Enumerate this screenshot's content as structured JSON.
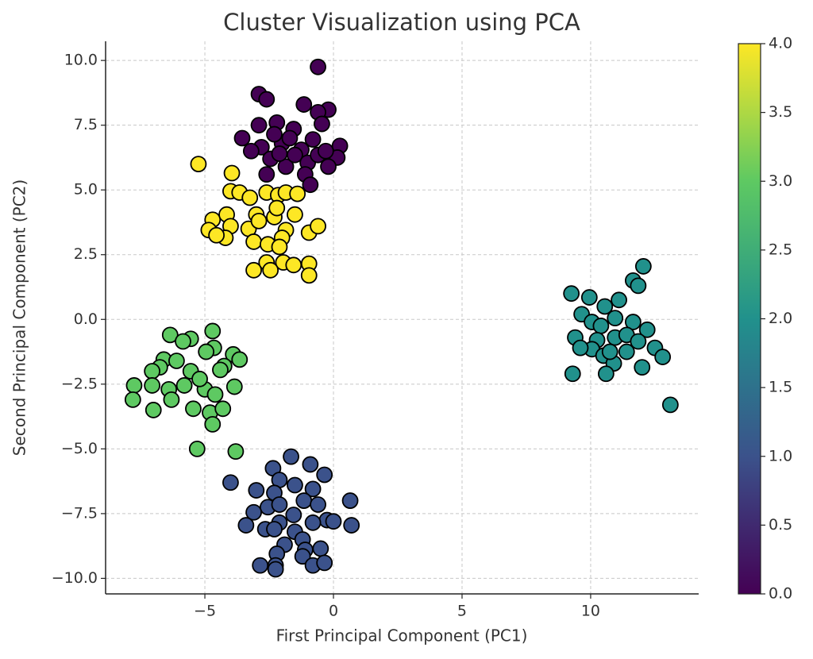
{
  "chart_data": {
    "type": "scatter",
    "title": "Cluster Visualization using PCA",
    "xlabel": "First Principal Component (PC1)",
    "ylabel": "Second Principal Component (PC2)",
    "xlim": [
      -8.86,
      14.2
    ],
    "ylim": [
      -10.6,
      10.74
    ],
    "xticks": [
      {
        "value": -5,
        "label": "−5"
      },
      0,
      5,
      10
    ],
    "yticks": [
      {
        "value": -10,
        "label": "−10.0"
      },
      {
        "value": -7.5,
        "label": "−7.5"
      },
      {
        "value": -5,
        "label": "−5.0"
      },
      {
        "value": -2.5,
        "label": "−2.5"
      },
      {
        "value": 0,
        "label": "0.0"
      },
      2.5,
      {
        "value": 5,
        "label": "5.0"
      },
      7.5,
      {
        "value": 10,
        "label": "10.0"
      }
    ],
    "grid": true,
    "edgecolor": "#000000",
    "colormap": "viridis",
    "colorbar": {
      "lim": [
        0,
        4
      ],
      "ticks": [
        {
          "value": 0,
          "label": "0.0"
        },
        {
          "value": 0.5,
          "label": "0.5"
        },
        {
          "value": 1,
          "label": "1.0"
        },
        {
          "value": 1.5,
          "label": "1.5"
        },
        {
          "value": 2,
          "label": "2.0"
        },
        {
          "value": 2.5,
          "label": "2.5"
        },
        {
          "value": 3,
          "label": "3.0"
        },
        {
          "value": 3.5,
          "label": "3.5"
        },
        {
          "value": 4,
          "label": "4.0"
        }
      ]
    },
    "x": [
      -0.6,
      -2.9,
      -2.6,
      -1.15,
      -0.2,
      -0.6,
      -2.9,
      -2.2,
      -1.55,
      -0.45,
      -3.55,
      -2.8,
      -2.0,
      -1.25,
      -0.8,
      0.25,
      -2.45,
      -1.85,
      -1.5,
      -1.0,
      -0.6,
      0.15,
      -2.6,
      -1.1,
      -0.9,
      -0.3,
      -2.3,
      -1.7,
      -2.1,
      -0.2,
      -3.2,
      -5.25,
      -3.95,
      -4.0,
      -3.65,
      -3.25,
      -2.6,
      -2.15,
      -1.85,
      -1.4,
      -4.7,
      -4.15,
      -4.0,
      -4.85,
      -4.2,
      -4.55,
      -3.3,
      -3.0,
      -2.9,
      -2.3,
      -2.2,
      -1.5,
      -1.85,
      -2.0,
      -0.95,
      -0.6,
      -3.1,
      -2.55,
      -2.1,
      -2.6,
      -1.95,
      -1.55,
      -0.95,
      -0.95,
      -3.1,
      -2.45,
      -6.35,
      -4.7,
      -5.55,
      -5.85,
      -4.65,
      -4.95,
      -6.6,
      -6.1,
      -3.9,
      -3.65,
      -4.25,
      -6.75,
      -7.05,
      -5.55,
      -4.4,
      -7.75,
      -7.05,
      -6.4,
      -5.8,
      -5.0,
      -3.85,
      -7.8,
      -7.0,
      -6.3,
      -5.45,
      -4.8,
      -4.3,
      -4.7,
      -5.3,
      -3.8,
      -5.2,
      -4.6,
      -1.65,
      -0.9,
      -2.35,
      -0.35,
      -4.0,
      -2.1,
      -1.5,
      -0.8,
      -3.0,
      -2.3,
      -1.15,
      0.65,
      -0.6,
      -2.55,
      -2.1,
      -3.1,
      -1.55,
      -0.25,
      0.0,
      -3.4,
      -2.1,
      -0.8,
      0.7,
      -2.65,
      -2.3,
      -1.5,
      -1.2,
      -1.9,
      -1.1,
      -0.5,
      -2.2,
      -1.2,
      -2.85,
      -2.25,
      -2.25,
      -0.8,
      -0.35,
      12.05,
      11.65,
      11.85,
      9.25,
      9.95,
      11.1,
      10.55,
      9.65,
      10.05,
      10.4,
      10.95,
      11.65,
      12.2,
      9.4,
      10.25,
      10.95,
      11.4,
      11.85,
      10.05,
      10.5,
      11.4,
      12.5,
      12.8,
      10.9,
      12.0,
      10.6,
      9.3,
      13.1,
      9.6,
      10.75
    ],
    "y": [
      9.75,
      8.7,
      8.5,
      8.3,
      8.1,
      8.0,
      7.5,
      7.6,
      7.35,
      7.55,
      7.0,
      6.65,
      6.8,
      6.55,
      6.95,
      6.7,
      6.2,
      5.9,
      6.35,
      6.05,
      6.35,
      6.25,
      5.6,
      5.6,
      5.2,
      6.5,
      7.15,
      7.0,
      6.4,
      5.9,
      6.5,
      6.0,
      5.65,
      4.95,
      4.9,
      4.7,
      4.9,
      4.8,
      4.9,
      4.85,
      3.85,
      4.05,
      3.6,
      3.45,
      3.15,
      3.25,
      3.5,
      4.05,
      3.8,
      3.95,
      4.3,
      4.05,
      3.45,
      3.15,
      3.35,
      3.6,
      3.0,
      2.9,
      2.8,
      2.2,
      2.2,
      2.1,
      2.15,
      1.7,
      1.9,
      1.9,
      -0.6,
      -0.45,
      -0.75,
      -0.85,
      -1.1,
      -1.25,
      -1.55,
      -1.6,
      -1.35,
      -1.55,
      -1.8,
      -1.85,
      -2.0,
      -2.0,
      -1.95,
      -2.55,
      -2.55,
      -2.7,
      -2.55,
      -2.7,
      -2.6,
      -3.1,
      -3.5,
      -3.1,
      -3.45,
      -3.6,
      -3.45,
      -4.05,
      -5.0,
      -5.1,
      -2.3,
      -2.9,
      -5.3,
      -5.6,
      -5.75,
      -6.0,
      -6.3,
      -6.2,
      -6.4,
      -6.55,
      -6.6,
      -6.7,
      -7.0,
      -7.0,
      -7.15,
      -7.25,
      -7.15,
      -7.45,
      -7.55,
      -7.75,
      -7.8,
      -7.95,
      -7.85,
      -7.85,
      -7.95,
      -8.1,
      -8.1,
      -8.2,
      -8.5,
      -8.7,
      -8.9,
      -8.85,
      -9.05,
      -9.15,
      -9.5,
      -9.5,
      -9.65,
      -9.5,
      -9.4,
      2.05,
      1.5,
      1.3,
      1.0,
      0.85,
      0.75,
      0.5,
      0.2,
      -0.1,
      -0.25,
      0.05,
      -0.1,
      -0.4,
      -0.7,
      -0.8,
      -0.7,
      -0.6,
      -0.85,
      -1.15,
      -1.4,
      -1.25,
      -1.1,
      -1.45,
      -1.7,
      -1.85,
      -2.1,
      -2.1,
      -3.3,
      -1.1,
      -1.25
    ],
    "c": [
      0,
      0,
      0,
      0,
      0,
      0,
      0,
      0,
      0,
      0,
      0,
      0,
      0,
      0,
      0,
      0,
      0,
      0,
      0,
      0,
      0,
      0,
      0,
      0,
      0,
      0,
      0,
      0,
      0,
      0,
      0,
      4,
      4,
      4,
      4,
      4,
      4,
      4,
      4,
      4,
      4,
      4,
      4,
      4,
      4,
      4,
      4,
      4,
      4,
      4,
      4,
      4,
      4,
      4,
      4,
      4,
      4,
      4,
      4,
      4,
      4,
      4,
      4,
      4,
      4,
      4,
      3,
      3,
      3,
      3,
      3,
      3,
      3,
      3,
      3,
      3,
      3,
      3,
      3,
      3,
      3,
      3,
      3,
      3,
      3,
      3,
      3,
      3,
      3,
      3,
      3,
      3,
      3,
      3,
      3,
      3,
      3,
      3,
      1,
      1,
      1,
      1,
      1,
      1,
      1,
      1,
      1,
      1,
      1,
      1,
      1,
      1,
      1,
      1,
      1,
      1,
      1,
      1,
      1,
      1,
      1,
      1,
      1,
      1,
      1,
      1,
      1,
      1,
      1,
      1,
      1,
      1,
      1,
      1,
      1,
      2,
      2,
      2,
      2,
      2,
      2,
      2,
      2,
      2,
      2,
      2,
      2,
      2,
      2,
      2,
      2,
      2,
      2,
      2,
      2,
      2,
      2,
      2,
      2,
      2,
      2,
      2,
      2,
      2,
      2
    ]
  }
}
